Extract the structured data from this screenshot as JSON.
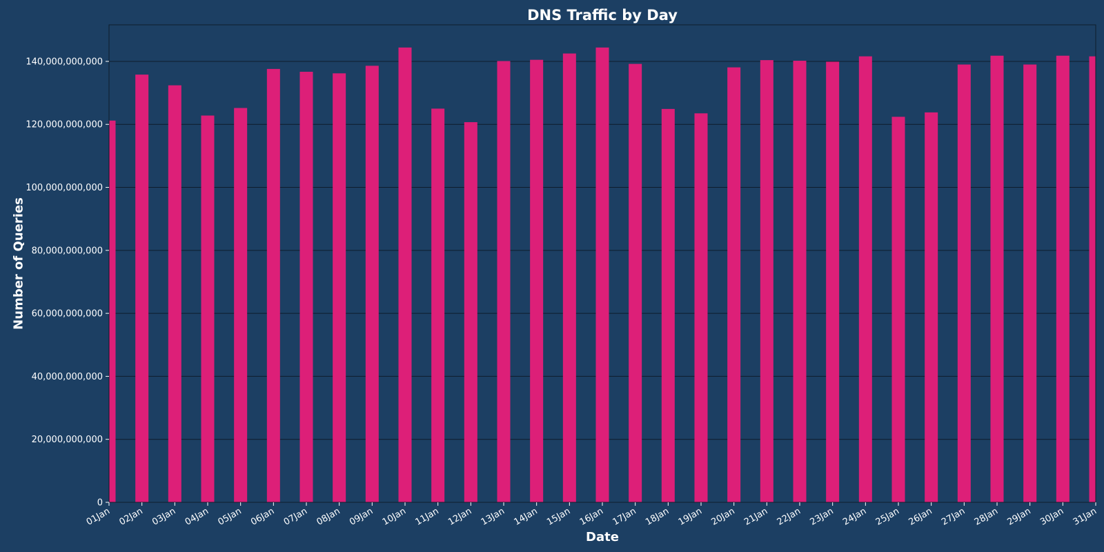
{
  "chart_data": {
    "type": "bar",
    "title": "DNS Traffic by Day",
    "xlabel": "Date",
    "ylabel": "Number of Queries",
    "categories": [
      "01Jan",
      "02Jan",
      "03Jan",
      "04Jan",
      "05Jan",
      "06Jan",
      "07Jan",
      "08Jan",
      "09Jan",
      "10Jan",
      "11Jan",
      "12Jan",
      "13Jan",
      "14Jan",
      "15Jan",
      "16Jan",
      "17Jan",
      "18Jan",
      "19Jan",
      "20Jan",
      "21Jan",
      "22Jan",
      "23Jan",
      "24Jan",
      "25Jan",
      "26Jan",
      "27Jan",
      "28Jan",
      "29Jan",
      "30Jan",
      "31Jan"
    ],
    "values": [
      121200000000,
      135800000000,
      132400000000,
      122800000000,
      125200000000,
      137600000000,
      136700000000,
      136200000000,
      138600000000,
      144400000000,
      125000000000,
      120700000000,
      140100000000,
      140500000000,
      142500000000,
      144400000000,
      139200000000,
      124900000000,
      123500000000,
      138100000000,
      140400000000,
      140200000000,
      139900000000,
      141600000000,
      122400000000,
      123800000000,
      139000000000,
      141800000000,
      139000000000,
      141800000000,
      141600000000
    ],
    "yticks": [
      0,
      20000000000,
      40000000000,
      60000000000,
      80000000000,
      100000000000,
      120000000000,
      140000000000
    ],
    "ytick_labels": [
      "0",
      "20,000,000,000",
      "40,000,000,000",
      "60,000,000,000",
      "80,000,000,000",
      "100,000,000,000",
      "120,000,000,000",
      "140,000,000,000"
    ],
    "ylim": [
      0,
      151600000000
    ],
    "grid": "y",
    "legend": "none",
    "colors": {
      "background": "#1c3f63",
      "bar": "#dd1f78",
      "grid": "#0e1c2b",
      "text": "#ffffff"
    }
  }
}
